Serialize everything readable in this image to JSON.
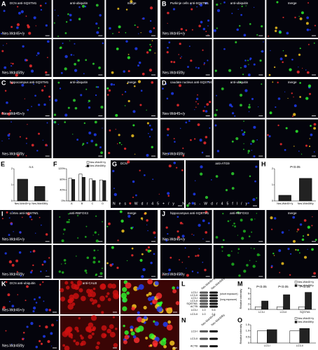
{
  "panels": [
    {
      "letter": "A",
      "titles": [
        "DCN anti-SQSTM1",
        "anti-ubiquitin",
        "merge"
      ],
      "rows": [
        "Nes-Wdr45+/y",
        "Nes-Wdr45fl/y"
      ]
    },
    {
      "letter": "B",
      "titles": [
        "Purkinje cells anti-SQSTM1",
        "anti-ubiquitin",
        "merge"
      ],
      "rows": [
        "Nes-Wdr45+/y",
        "Nes-Wdr45fl/y"
      ]
    },
    {
      "letter": "C",
      "titles": [
        "hippocampus anti-SQSTM1",
        "anti-ubiquitin",
        "merge"
      ],
      "rows": [
        "Nes-Wdr45+/y",
        "Nes-Wdr45fl/y"
      ]
    },
    {
      "letter": "D",
      "titles": [
        "caudate nucleus anti-SQSTM1",
        "anti-ubiquitin",
        "merge"
      ],
      "rows": [
        "Nes-Wdr45+/y",
        "Nes-Wdr45fl/y"
      ]
    },
    {
      "letter": "G",
      "titles": [
        "DCN",
        "anti-ATG9"
      ],
      "rows": [
        "Nes-Wdr45+/y Nes-Wdr45fl/y"
      ]
    },
    {
      "letter": "I",
      "titles": [
        "cortex anti-SQSTM1",
        "anti-RBFOX3",
        "merge"
      ],
      "rows": [
        "Nes-Wdr45+/y",
        "Nes-Wdr45fl/y"
      ]
    },
    {
      "letter": "J",
      "titles": [
        "hippocampus anti-SQSTM1",
        "anti-RBFOX3",
        "merge"
      ],
      "rows": [
        "Nes-Wdr45+/y",
        "Nes-Wdr45fl/y"
      ]
    },
    {
      "letter": "K",
      "titles": [
        "DCN anti-ubiquitin",
        "anti-CALB",
        ""
      ],
      "rows": [
        "Nes-Wdr45+/y",
        "Nes-Wdr45fl/y"
      ]
    }
  ],
  "blots": [
    {
      "letter": "L",
      "lanes": [
        "Nes-Wdr45+/y",
        "Nes-Wdr45fl/y"
      ],
      "bands": [
        "LC3-I",
        "LC3-II",
        "LC3-I",
        "LC3-II",
        "SQSTM1",
        "ACTB"
      ],
      "notes": [
        "(short exposure)",
        "(long exposure)"
      ],
      "ratios": [
        {
          "label": "LC3-I",
          "values": [
            "1.0",
            "5.6"
          ]
        },
        {
          "label": "LC3-II",
          "values": [
            "1.0",
            "2.1"
          ]
        }
      ]
    },
    {
      "letter": "N",
      "lanes": [
        "Nes-Wdr45+/y",
        "Nes-Wdr45fl/y"
      ],
      "bands": [
        "LC3-I",
        "LC3-II",
        "ACTB"
      ],
      "notes": [],
      "ratios": []
    }
  ],
  "chart_data": [
    {
      "type": "bar",
      "letter": "E",
      "categories": [
        "Nes-Wdr45+/y",
        "Nes-Wdr45fl/y"
      ],
      "values": [
        1.35,
        0.9
      ],
      "color": "#222222",
      "ylim": [
        0,
        2
      ],
      "yticks": [
        0,
        1,
        2
      ],
      "annotations": [
        "n.s"
      ]
    },
    {
      "type": "bar",
      "letter": "F",
      "categories": [
        "A",
        "B",
        "C",
        "D"
      ],
      "series": [
        {
          "name": "Nes-Wdr45+/y",
          "color": "#ffffff",
          "values": [
            0.85,
            1.0,
            0.82,
            0.78
          ]
        },
        {
          "name": "Nes-Wdr45fl/y",
          "color": "#222222",
          "values": [
            0.8,
            0.88,
            0.76,
            0.76
          ]
        }
      ],
      "ylim": [
        0,
        1.2
      ],
      "yticks": [
        {
          "value": 0,
          "label": "0%"
        },
        {
          "value": 0.4,
          "label": "40%"
        },
        {
          "value": 0.8,
          "label": "80%"
        },
        {
          "value": 1.2,
          "label": "120%"
        }
      ],
      "annotations": [
        "***"
      ]
    },
    {
      "type": "bar",
      "letter": "H",
      "categories": [
        "Nes-Wdr45+/y",
        "Nes-Wdr45fl/y"
      ],
      "values": [
        0.35,
        1.4
      ],
      "color": "#222222",
      "ylim": [
        0,
        2
      ],
      "yticks": [
        0,
        1,
        2
      ],
      "annotations": [
        "P<0.05"
      ]
    },
    {
      "type": "bar",
      "letter": "M",
      "ylabel": "Relative intensity",
      "categories": [
        "LC3-I",
        "LC3-II",
        "SQSTM1"
      ],
      "series": [
        {
          "name": "Nes-Wdr45+/y",
          "color": "#ffffff",
          "values": [
            1,
            1,
            1
          ]
        },
        {
          "name": "Nes-Wdr45fl/y",
          "color": "#222222",
          "values": [
            3.2,
            5.6,
            6.5
          ]
        }
      ],
      "ylim": [
        0,
        8
      ],
      "yticks": [
        0,
        2,
        4,
        6,
        8
      ],
      "annotations": [
        "P<0.05",
        "P<0.05",
        "P<0.05"
      ]
    },
    {
      "type": "bar",
      "letter": "O",
      "ylabel": "Relative intensity",
      "categories": [
        "LC3-I",
        "LC3-II"
      ],
      "series": [
        {
          "name": "Nes-Wdr45+/y",
          "color": "#ffffff",
          "values": [
            1,
            1
          ]
        },
        {
          "name": "Nes-Wdr45fl/y",
          "color": "#222222",
          "values": [
            1.1,
            1.2
          ]
        }
      ],
      "ylim": [
        0,
        1.5
      ],
      "yticks": [
        0,
        {
          "value": 0.5,
          "label": "0.5"
        },
        {
          "value": 1,
          "label": "1.0"
        },
        {
          "value": 1.5,
          "label": "1.5"
        }
      ],
      "annotations": []
    }
  ]
}
